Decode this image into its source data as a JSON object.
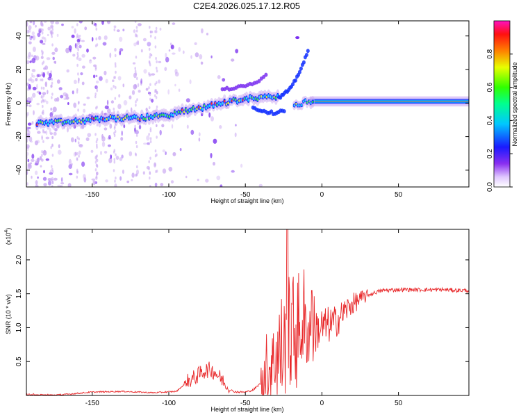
{
  "title": "C2E4.2026.025.17.12.R05",
  "colors": {
    "snr_line": "#e8282a",
    "spec_faint": "#c9a7f2",
    "spec_mid": "#7a2ff0",
    "spec_blue": "#1330ff",
    "spec_cyan": "#00e8ff",
    "spec_green": "#22ff22",
    "spec_red": "#ff2020"
  },
  "chart_data": [
    {
      "type": "heatmap",
      "name": "spectrogram",
      "xlabel": "Height of straight line (km)",
      "ylabel": "Frequency (Hz)",
      "xlim": [
        -193,
        96
      ],
      "ylim": [
        -50,
        49
      ],
      "xticks": [
        -150,
        -100,
        -50,
        0,
        50
      ],
      "yticks": [
        -40,
        -20,
        0,
        20,
        40
      ],
      "colorbar": {
        "label": "Normalized spectral amplitude",
        "range": [
          0.0,
          1.0
        ],
        "ticks": [
          "0.0",
          "0.2",
          "0.4",
          "0.6",
          "0.8"
        ],
        "tick_values": [
          0.0,
          0.2,
          0.4,
          0.6,
          0.8
        ],
        "colormap": "rainbow (white-violet-blue-cyan-green-yellow-red-magenta)"
      },
      "features": {
        "main_trace": [
          [
            -185,
            -12
          ],
          [
            -160,
            -11
          ],
          [
            -140,
            -9
          ],
          [
            -120,
            -9
          ],
          [
            -100,
            -7
          ],
          [
            -80,
            -3
          ],
          [
            -60,
            1
          ],
          [
            -45,
            3
          ],
          [
            -30,
            4
          ]
        ],
        "tail_trace": [
          [
            -18,
            -2
          ],
          [
            -10,
            1
          ],
          [
            0,
            1
          ],
          [
            95,
            1
          ]
        ],
        "rising_branch": [
          [
            -28,
            3
          ],
          [
            -20,
            9
          ],
          [
            -16,
            16
          ],
          [
            -12,
            24
          ],
          [
            -9,
            31
          ]
        ],
        "upper_branch": [
          [
            -65,
            8
          ],
          [
            -50,
            10
          ],
          [
            -40,
            14
          ],
          [
            -36,
            18
          ]
        ],
        "lower_branch": [
          [
            -45,
            -3
          ],
          [
            -32,
            -6
          ],
          [
            -24,
            -4
          ]
        ]
      }
    },
    {
      "type": "line",
      "name": "snr",
      "xlabel": "Height of straight line (km)",
      "ylabel": "SNR (10 * v/v)",
      "yscale_label": "(x10",
      "yscale_exp": "4",
      "xlim": [
        -193,
        96
      ],
      "ylim": [
        0.0,
        2.45
      ],
      "xticks": [
        -150,
        -100,
        -50,
        0,
        50
      ],
      "yticks": [
        "0.5",
        "1.0",
        "1.5",
        "2.0"
      ],
      "ytick_values": [
        0.5,
        1.0,
        1.5,
        2.0
      ],
      "series": [
        {
          "name": "SNR",
          "x": [
            -193,
            -170,
            -150,
            -130,
            -110,
            -95,
            -88,
            -82,
            -78,
            -74,
            -70,
            -66,
            -62,
            -58,
            -54,
            -50,
            -45,
            -40,
            -36,
            -30,
            -25,
            -21,
            -18,
            -12,
            -6,
            0,
            6,
            10,
            15,
            20,
            25,
            30,
            35,
            40,
            50,
            60,
            70,
            80,
            90,
            96
          ],
          "y": [
            0.0,
            0.01,
            0.05,
            0.06,
            0.04,
            0.06,
            0.2,
            0.28,
            0.35,
            0.38,
            0.35,
            0.25,
            0.12,
            0.06,
            0.05,
            0.05,
            0.08,
            0.18,
            0.4,
            0.55,
            0.7,
            0.9,
            0.95,
            0.95,
            0.95,
            1.0,
            1.05,
            1.1,
            1.25,
            1.35,
            1.42,
            1.48,
            1.52,
            1.55,
            1.56,
            1.56,
            1.56,
            1.56,
            1.55,
            1.55
          ]
        }
      ]
    }
  ]
}
